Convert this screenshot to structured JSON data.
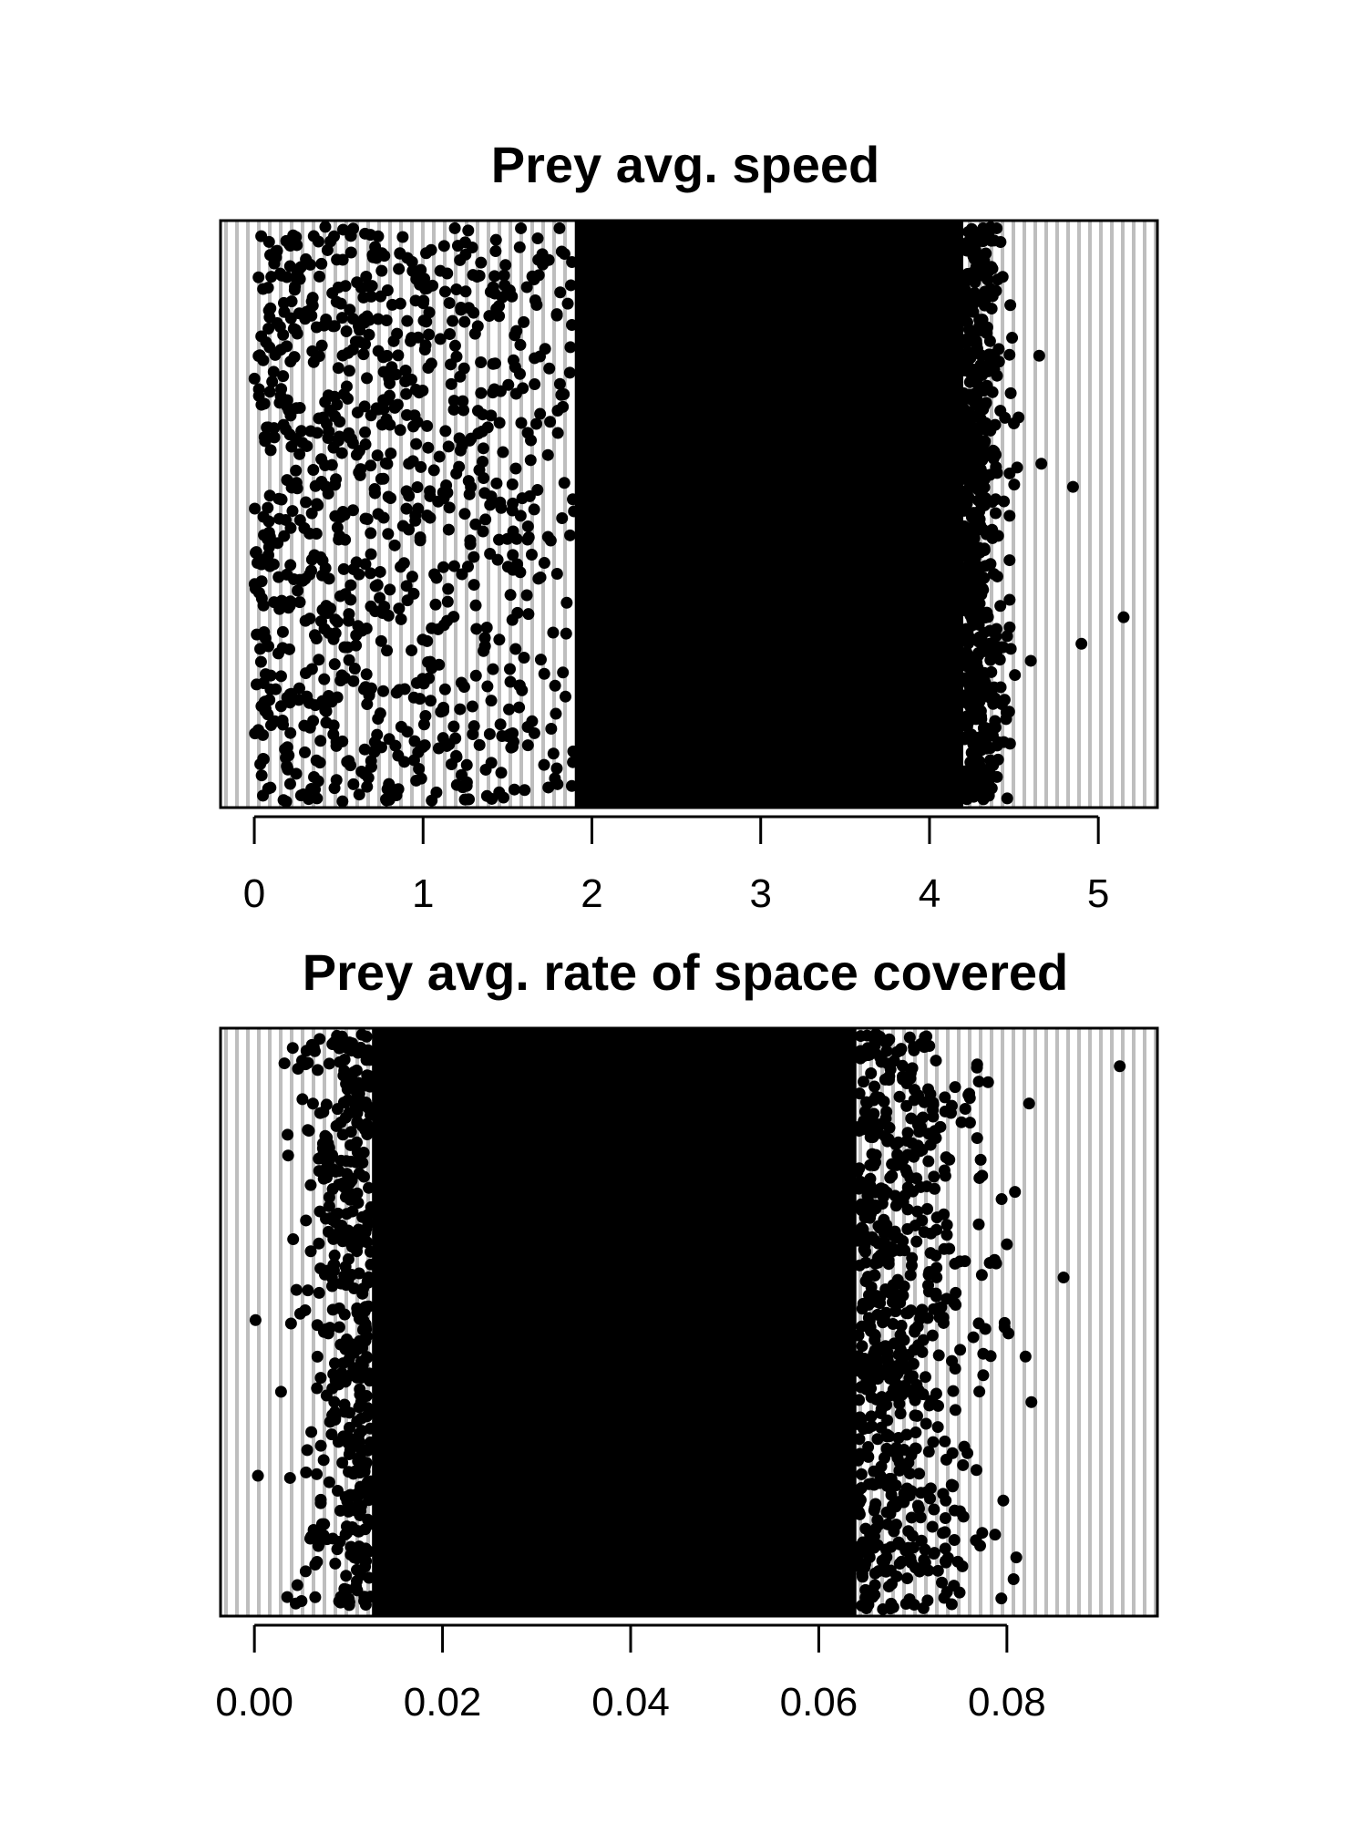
{
  "chart_data": [
    {
      "type": "scatter",
      "title": "Prey avg. speed",
      "xlabel": "",
      "ylabel": "",
      "xlim": [
        -0.2,
        5.35
      ],
      "x_ticks": [
        0,
        1,
        2,
        3,
        4,
        5
      ],
      "x_tick_labels": [
        "0",
        "1",
        "2",
        "3",
        "4",
        "5"
      ],
      "grid": "vertical gray lines",
      "point_color": "#000000",
      "distribution": {
        "dense_band": [
          1.9,
          4.2
        ],
        "points_extent": [
          0.0,
          5.15
        ],
        "sparse_points": [
          4.5,
          4.6,
          4.65,
          4.85,
          4.9,
          5.15
        ]
      }
    },
    {
      "type": "scatter",
      "title": "Prey avg. rate of space covered",
      "xlabel": "",
      "ylabel": "",
      "xlim": [
        -0.0036,
        0.096
      ],
      "x_ticks": [
        0.0,
        0.02,
        0.04,
        0.06,
        0.08
      ],
      "x_tick_labels": [
        "0.00",
        "0.02",
        "0.04",
        "0.06",
        "0.08"
      ],
      "grid": "vertical gray lines",
      "point_color": "#000000",
      "distribution": {
        "dense_band": [
          0.0125,
          0.064
        ],
        "points_extent": [
          0.0,
          0.092
        ],
        "sparse_points": [
          0.076,
          0.078,
          0.08,
          0.081,
          0.092
        ]
      }
    }
  ],
  "colors": {
    "background": "#ffffff",
    "grid": "#bebebe",
    "points": "#000000",
    "frame": "#000000"
  }
}
